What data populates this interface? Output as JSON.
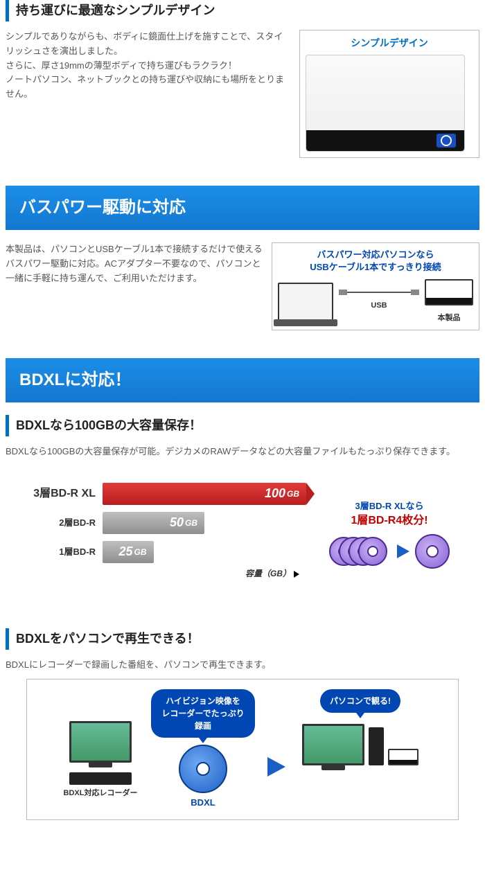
{
  "section1": {
    "title": "持ち運びに最適なシンプルデザイン",
    "body": "シンプルでありながらも、ボディに鏡面仕上げを施すことで、スタイリッシュさを演出しました。\nさらに、厚さ19mmの薄型ボディで持ち運びもラクラク！\nノートパソコン、ネットブックとの持ち運びや収納にも場所をとりません。",
    "fig_caption": "シンプルデザイン"
  },
  "banner1": "バスパワー駆動に対応",
  "section2": {
    "body": "本製品は、パソコンとUSBケーブル1本で接続するだけで使えるバスパワー駆動に対応。ACアダプター不要なので、パソコンと一緒に手軽に持ち運んで、ご利用いただけます。",
    "fig_title_l1": "バスパワー対応パソコンなら",
    "fig_title_l2": "USBケーブル1本ですっきり接続",
    "usb_label": "USB",
    "device_label": "本製品"
  },
  "banner2": "BDXLに対応！",
  "section3": {
    "title": "BDXLなら100GBの大容量保存！",
    "body": "BDXLなら100GBの大容量保存が可能。デジカメのRAWデータなどの大容量ファイルもたっぷり保存できます。",
    "chart": {
      "rows": [
        {
          "label": "3層BD-R XL",
          "value_num": "100",
          "value_unit": "GB",
          "pct": 100,
          "color": "red",
          "label_size": "16px"
        },
        {
          "label": "2層BD-R",
          "value_num": "50",
          "value_unit": "GB",
          "pct": 50,
          "color": "gray",
          "label_size": "13px"
        },
        {
          "label": "1層BD-R",
          "value_num": "25",
          "value_unit": "GB",
          "pct": 25,
          "color": "gray",
          "label_size": "13px"
        }
      ],
      "axis_label": "容量（GB）"
    },
    "side_title_l1": "3層BD-R XLなら",
    "side_title_l2": "1層BD-R4枚分!"
  },
  "section4": {
    "title": "BDXLをパソコンで再生できる！",
    "body": "BDXLにレコーダーで録画した番組を、パソコンで再生できます。",
    "bubble1_l1": "ハイビジョン映像を",
    "bubble1_l2": "レコーダーでたっぷり録画",
    "bubble2": "パソコンで観る!",
    "recorder_label": "BDXL対応レコーダー",
    "disc_label": "BDXL"
  },
  "colors": {
    "accent_blue": "#0070c0",
    "banner_blue": "#1b8ee8",
    "deep_blue": "#0047b3",
    "bar_red": "#b71e1e",
    "bar_gray": "#8e8e8e",
    "disc_purple": "#8a5fd8"
  }
}
